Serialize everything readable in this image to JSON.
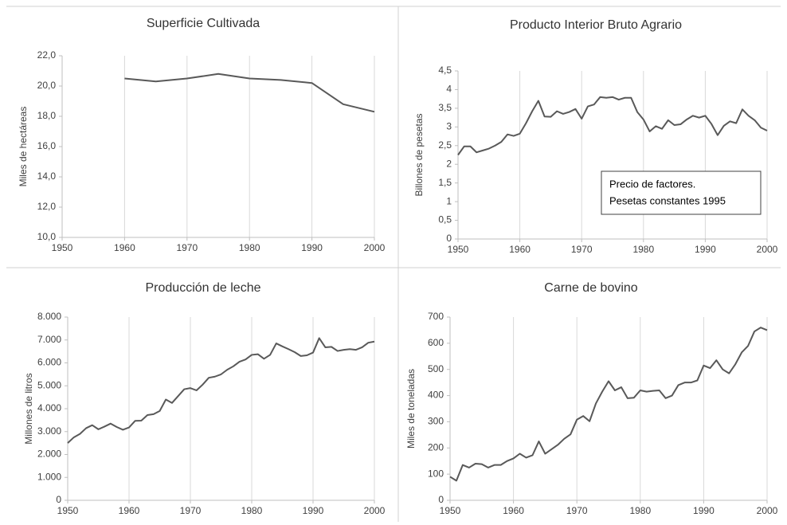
{
  "chart_data": [
    {
      "type": "line",
      "title": "Superficie Cultivada",
      "ylabel": "Miles de hectáreas",
      "color": "#595959",
      "x": [
        1960,
        1965,
        1970,
        1975,
        1980,
        1985,
        1990,
        1995,
        2000
      ],
      "values": [
        20.5,
        20.3,
        20.5,
        20.8,
        20.5,
        20.4,
        20.2,
        18.8,
        18.3
      ],
      "xlim": [
        1950,
        2000
      ],
      "xticks": [
        1950,
        1960,
        1970,
        1980,
        1990,
        2000
      ],
      "ylim": [
        10,
        22
      ],
      "yticks": [
        {
          "value": 10,
          "label": "10,0"
        },
        {
          "value": 12,
          "label": "12,0"
        },
        {
          "value": 14,
          "label": "14,0"
        },
        {
          "value": 16,
          "label": "16,0"
        },
        {
          "value": 18,
          "label": "18,0"
        },
        {
          "value": 20,
          "label": "20,0"
        },
        {
          "value": 22,
          "label": "22,0"
        }
      ],
      "grid": "x"
    },
    {
      "type": "line",
      "title": "Producto Interior Bruto Agrario",
      "ylabel": "Billones de  pesetas",
      "color": "#595959",
      "annotation": [
        "Precio de factores.",
        "Pesetas constantes 1995"
      ],
      "x": [
        1950,
        1951,
        1952,
        1953,
        1954,
        1955,
        1956,
        1957,
        1958,
        1959,
        1960,
        1961,
        1962,
        1963,
        1964,
        1965,
        1966,
        1967,
        1968,
        1969,
        1970,
        1971,
        1972,
        1973,
        1974,
        1975,
        1976,
        1977,
        1978,
        1979,
        1980,
        1981,
        1982,
        1983,
        1984,
        1985,
        1986,
        1987,
        1988,
        1989,
        1990,
        1991,
        1992,
        1993,
        1994,
        1995,
        1996,
        1997,
        1998,
        1999,
        2000
      ],
      "values": [
        2.25,
        2.48,
        2.48,
        2.32,
        2.37,
        2.42,
        2.5,
        2.6,
        2.8,
        2.76,
        2.82,
        3.1,
        3.42,
        3.7,
        3.28,
        3.27,
        3.42,
        3.35,
        3.4,
        3.48,
        3.22,
        3.55,
        3.6,
        3.8,
        3.78,
        3.8,
        3.73,
        3.78,
        3.78,
        3.4,
        3.2,
        2.88,
        3.02,
        2.95,
        3.18,
        3.05,
        3.07,
        3.2,
        3.3,
        3.25,
        3.3,
        3.08,
        2.78,
        3.03,
        3.15,
        3.1,
        3.47,
        3.3,
        3.18,
        2.98,
        2.9
      ],
      "xlim": [
        1950,
        2000
      ],
      "xticks": [
        1950,
        1960,
        1970,
        1980,
        1990,
        2000
      ],
      "ylim": [
        0,
        4.5
      ],
      "yticks": [
        0,
        {
          "value": 0.5,
          "label": "0,5"
        },
        1,
        {
          "value": 1.5,
          "label": "1,5"
        },
        2,
        {
          "value": 2.5,
          "label": "2,5"
        },
        3,
        {
          "value": 3.5,
          "label": "3,5"
        },
        4,
        {
          "value": 4.5,
          "label": "4,5"
        }
      ],
      "grid": "x"
    },
    {
      "type": "line",
      "title": "Producción de leche",
      "ylabel": "Millones de litros",
      "color": "#595959",
      "x": [
        1950,
        1951,
        1952,
        1953,
        1954,
        1955,
        1956,
        1957,
        1958,
        1959,
        1960,
        1961,
        1962,
        1963,
        1964,
        1965,
        1966,
        1967,
        1968,
        1969,
        1970,
        1971,
        1972,
        1973,
        1974,
        1975,
        1976,
        1977,
        1978,
        1979,
        1980,
        1981,
        1982,
        1983,
        1984,
        1985,
        1986,
        1987,
        1988,
        1989,
        1990,
        1991,
        1992,
        1993,
        1994,
        1995,
        1996,
        1997,
        1998,
        1999,
        2000
      ],
      "values": [
        2500,
        2750,
        2900,
        3150,
        3280,
        3100,
        3220,
        3350,
        3200,
        3080,
        3180,
        3470,
        3480,
        3720,
        3760,
        3900,
        4400,
        4250,
        4550,
        4850,
        4900,
        4800,
        5050,
        5350,
        5400,
        5500,
        5700,
        5850,
        6050,
        6150,
        6350,
        6380,
        6180,
        6350,
        6850,
        6720,
        6600,
        6470,
        6300,
        6330,
        6450,
        7080,
        6680,
        6700,
        6520,
        6570,
        6600,
        6570,
        6680,
        6880,
        6930
      ],
      "xlim": [
        1950,
        2000
      ],
      "xticks": [
        1950,
        1960,
        1970,
        1980,
        1990,
        2000
      ],
      "ylim": [
        0,
        8000
      ],
      "yticks": [
        0,
        {
          "value": 1000,
          "label": "1.000"
        },
        {
          "value": 2000,
          "label": "2.000"
        },
        {
          "value": 3000,
          "label": "3.000"
        },
        {
          "value": 4000,
          "label": "4.000"
        },
        {
          "value": 5000,
          "label": "5.000"
        },
        {
          "value": 6000,
          "label": "6.000"
        },
        {
          "value": 7000,
          "label": "7.000"
        },
        {
          "value": 8000,
          "label": "8.000"
        }
      ],
      "grid": "x"
    },
    {
      "type": "line",
      "title": "Carne de bovino",
      "ylabel": "Miles de toneladas",
      "color": "#595959",
      "x": [
        1950,
        1951,
        1952,
        1953,
        1954,
        1955,
        1956,
        1957,
        1958,
        1959,
        1960,
        1961,
        1962,
        1963,
        1964,
        1965,
        1966,
        1967,
        1968,
        1969,
        1970,
        1971,
        1972,
        1973,
        1974,
        1975,
        1976,
        1977,
        1978,
        1979,
        1980,
        1981,
        1982,
        1983,
        1984,
        1985,
        1986,
        1987,
        1988,
        1989,
        1990,
        1991,
        1992,
        1993,
        1994,
        1995,
        1996,
        1997,
        1998,
        1999,
        2000
      ],
      "values": [
        90,
        75,
        135,
        125,
        140,
        138,
        125,
        135,
        135,
        150,
        160,
        178,
        163,
        172,
        225,
        178,
        195,
        212,
        235,
        252,
        308,
        322,
        302,
        370,
        415,
        455,
        420,
        432,
        390,
        392,
        420,
        415,
        418,
        420,
        390,
        400,
        440,
        450,
        450,
        458,
        515,
        505,
        535,
        500,
        485,
        520,
        565,
        590,
        645,
        660,
        650
      ],
      "xlim": [
        1950,
        2000
      ],
      "xticks": [
        1950,
        1960,
        1970,
        1980,
        1990,
        2000
      ],
      "ylim": [
        0,
        700
      ],
      "yticks": [
        0,
        100,
        200,
        300,
        400,
        500,
        600,
        700
      ],
      "grid": "x"
    }
  ]
}
